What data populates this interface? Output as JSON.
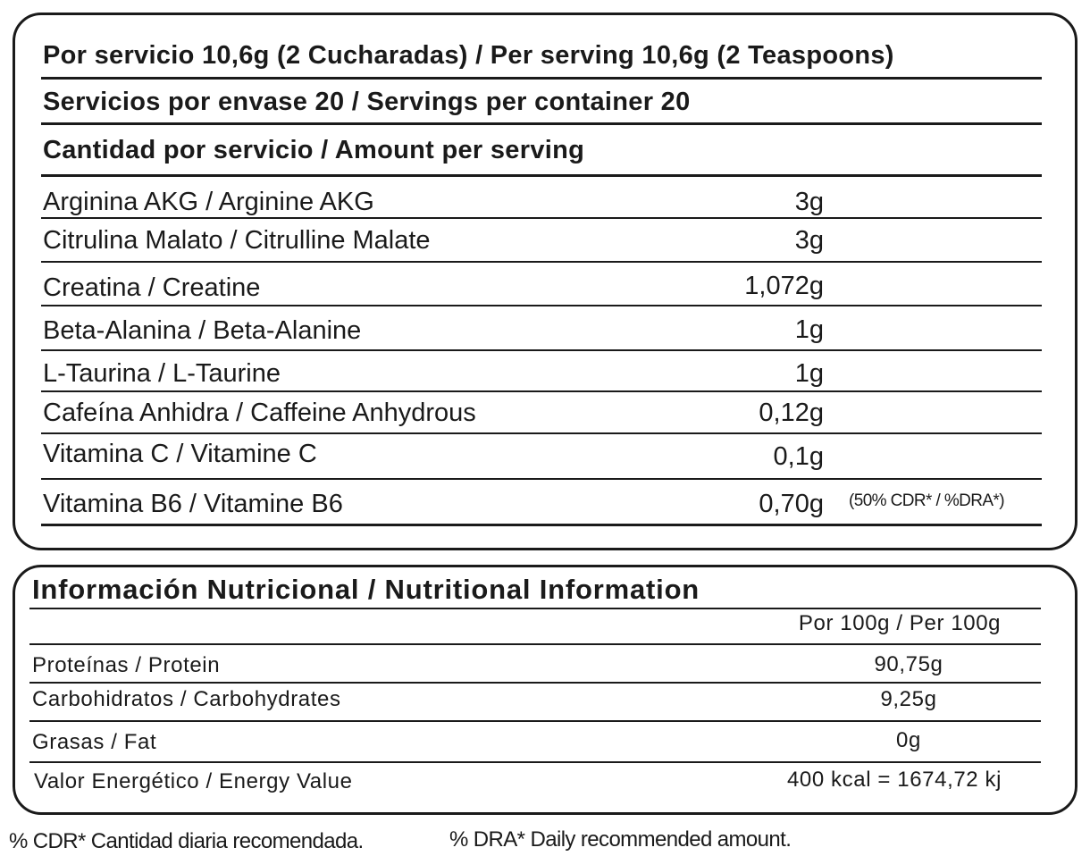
{
  "serving": {
    "per_serving": "Por servicio 10,6g (2 Cucharadas) / Per serving  10,6g (2 Teaspoons)",
    "servings_per_container": "Servicios por envase 20 / Servings per container 20",
    "amount_header": "Cantidad por servicio / Amount per serving",
    "ingredients": [
      {
        "name": "Arginina AKG / Arginine AKG",
        "amount": "3g"
      },
      {
        "name": "Citrulina Malato / Citrulline Malate",
        "amount": "3g"
      },
      {
        "name": "Creatina / Creatine",
        "amount": "1,072g"
      },
      {
        "name": "Beta-Alanina / Beta-Alanine",
        "amount": "1g"
      },
      {
        "name": "L-Taurina / L-Taurine",
        "amount": "1g"
      },
      {
        "name": "Cafeína Anhidra / Caffeine Anhydrous",
        "amount": "0,12g"
      },
      {
        "name": "Vitamina C / Vitamine C",
        "amount": "0,1g"
      },
      {
        "name": "Vitamina B6 / Vitamine B6",
        "amount": "0,70g",
        "note": "(50% CDR* / %DRA*)"
      }
    ]
  },
  "nutrition": {
    "title": "Información Nutricional / Nutritional Information",
    "column_header": "Por 100g / Per 100g",
    "rows": [
      {
        "name": "Proteínas / Protein",
        "value": "90,75g"
      },
      {
        "name": "Carbohidratos / Carbohydrates",
        "value": "9,25g"
      },
      {
        "name": "Grasas / Fat",
        "value": "0g"
      },
      {
        "name": "Valor Energético / Energy Value",
        "value": "400 kcal = 1674,72 kj"
      }
    ]
  },
  "footnotes": {
    "cdr": "% CDR* Cantidad diaria recomendada.",
    "dra": "% DRA* Daily recommended amount."
  }
}
